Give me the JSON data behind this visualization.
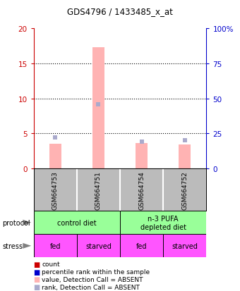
{
  "title": "GDS4796 / 1433485_x_at",
  "samples": [
    "GSM664753",
    "GSM664751",
    "GSM664754",
    "GSM664752"
  ],
  "bar_values": [
    3.5,
    17.3,
    3.6,
    3.4
  ],
  "rank_values_pct": [
    22,
    46,
    19,
    20
  ],
  "left_yticks": [
    0,
    5,
    10,
    15,
    20
  ],
  "right_yticks": [
    0,
    25,
    50,
    75,
    100
  ],
  "right_yticklabels": [
    "0",
    "25",
    "50",
    "75",
    "100%"
  ],
  "bar_color": "#ffb3b3",
  "rank_color": "#aaaacc",
  "legend_red": "#cc0000",
  "legend_blue": "#0000cc",
  "protocol_labels": [
    "control diet",
    "n-3 PUFA\ndepleted diet"
  ],
  "protocol_color": "#99ff99",
  "stress_labels": [
    "fed",
    "starved",
    "fed",
    "starved"
  ],
  "stress_color": "#ff55ff",
  "sample_bg_color": "#bbbbbb",
  "left_axis_color": "#cc0000",
  "right_axis_color": "#0000cc",
  "ylim": [
    0,
    20
  ],
  "right_ylim": [
    0,
    100
  ]
}
